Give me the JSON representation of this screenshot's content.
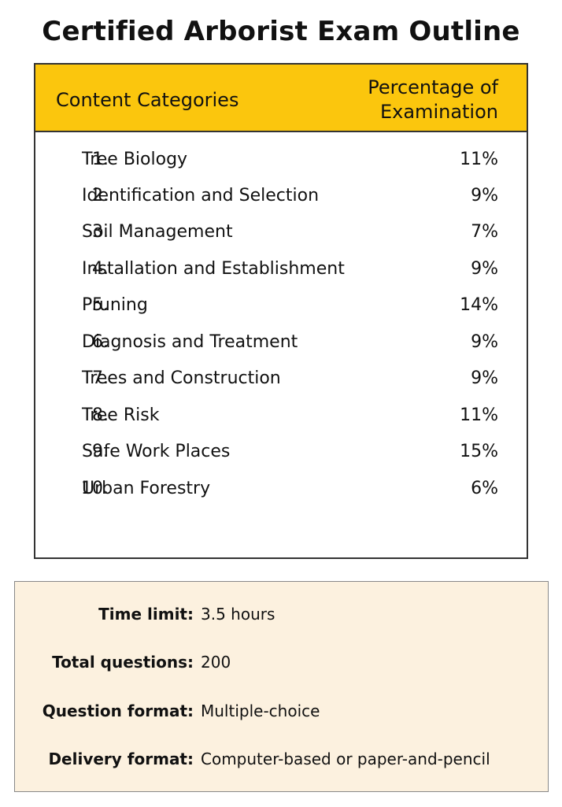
{
  "title": "Certified Arborist Exam Outline",
  "table": {
    "header": {
      "category": "Content Categories",
      "percentage_line1": "Percentage of",
      "percentage_line2": "Examination"
    },
    "rows": [
      {
        "num": "1.",
        "name": "Tree Biology",
        "pct": "11%"
      },
      {
        "num": "2.",
        "name": "Identification and Selection",
        "pct": "9%"
      },
      {
        "num": "3.",
        "name": "Soil Management",
        "pct": "7%"
      },
      {
        "num": "4.",
        "name": "Installation and Establishment",
        "pct": "9%"
      },
      {
        "num": "5.",
        "name": "Pruning",
        "pct": "14%"
      },
      {
        "num": "6.",
        "name": "Diagnosis and Treatment",
        "pct": "9%"
      },
      {
        "num": "7.",
        "name": "Trees and Construction",
        "pct": "9%"
      },
      {
        "num": "8.",
        "name": "Tree Risk",
        "pct": "11%"
      },
      {
        "num": "9.",
        "name": "Safe Work Places",
        "pct": "15%"
      },
      {
        "num": "10.",
        "name": "Urban Forestry",
        "pct": "6%"
      }
    ]
  },
  "details": [
    {
      "label": "Time limit:",
      "value": "3.5 hours"
    },
    {
      "label": "Total questions:",
      "value": "200"
    },
    {
      "label": "Question format:",
      "value": "Multiple-choice"
    },
    {
      "label": "Delivery format:",
      "value": "Computer-based or paper-and-pencil"
    }
  ],
  "colors": {
    "header_fill": "#fbc60d",
    "info_box_fill": "#fcf1df"
  }
}
